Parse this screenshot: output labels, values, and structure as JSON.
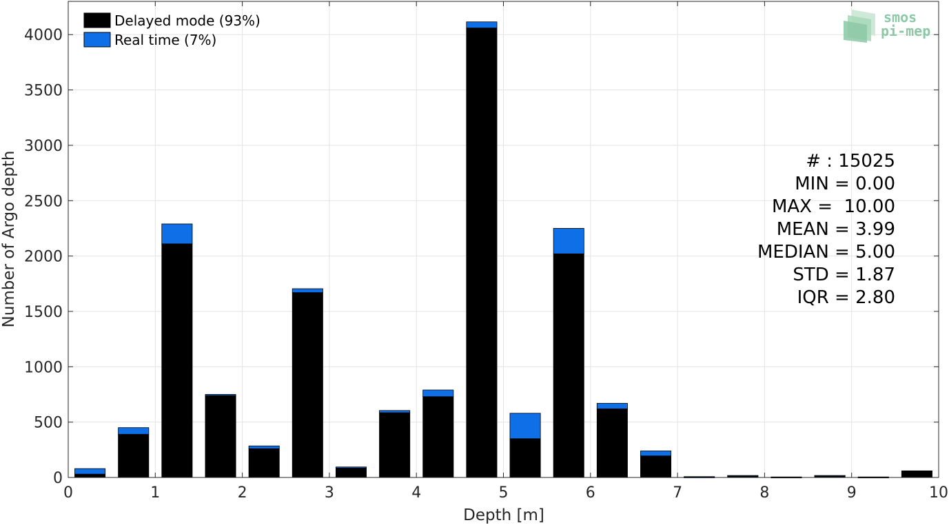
{
  "chart_data": {
    "type": "bar",
    "stacked": true,
    "xlabel": "Depth [m]",
    "ylabel": "Number of Argo depth",
    "xlim": [
      0,
      10
    ],
    "ylim": [
      0,
      4300
    ],
    "x_ticks": [
      "0",
      "1",
      "2",
      "3",
      "4",
      "5",
      "6",
      "7",
      "8",
      "9",
      "10"
    ],
    "y_ticks": [
      "0",
      "500",
      "1000",
      "1500",
      "2000",
      "2500",
      "3000",
      "3500",
      "4000"
    ],
    "grid": true,
    "legend_position": "top-left",
    "x": [
      0.25,
      0.75,
      1.25,
      1.75,
      2.25,
      2.75,
      3.25,
      3.75,
      4.25,
      4.75,
      5.25,
      5.75,
      6.25,
      6.75,
      7.25,
      7.75,
      8.25,
      8.75,
      9.25,
      9.75
    ],
    "series": [
      {
        "name": "Delayed mode (93%)",
        "color": "#000000",
        "values": [
          30,
          390,
          2110,
          740,
          260,
          1670,
          85,
          585,
          730,
          4060,
          350,
          2020,
          620,
          195,
          3,
          15,
          2,
          15,
          2,
          60
        ]
      },
      {
        "name": "Real time (7%)",
        "color": "#0f6fe6",
        "values": [
          50,
          60,
          180,
          10,
          25,
          35,
          10,
          20,
          60,
          55,
          230,
          230,
          50,
          45,
          5,
          3,
          3,
          3,
          3,
          0
        ]
      }
    ],
    "annotations": [
      "# : 15025",
      "MIN = 0.00",
      "MAX =  10.00",
      "MEAN = 3.99",
      "MEDIAN = 5.00",
      "STD = 1.87",
      "IQR = 2.80"
    ]
  },
  "logo": {
    "line1": "smos",
    "line2": "pi-mep"
  }
}
